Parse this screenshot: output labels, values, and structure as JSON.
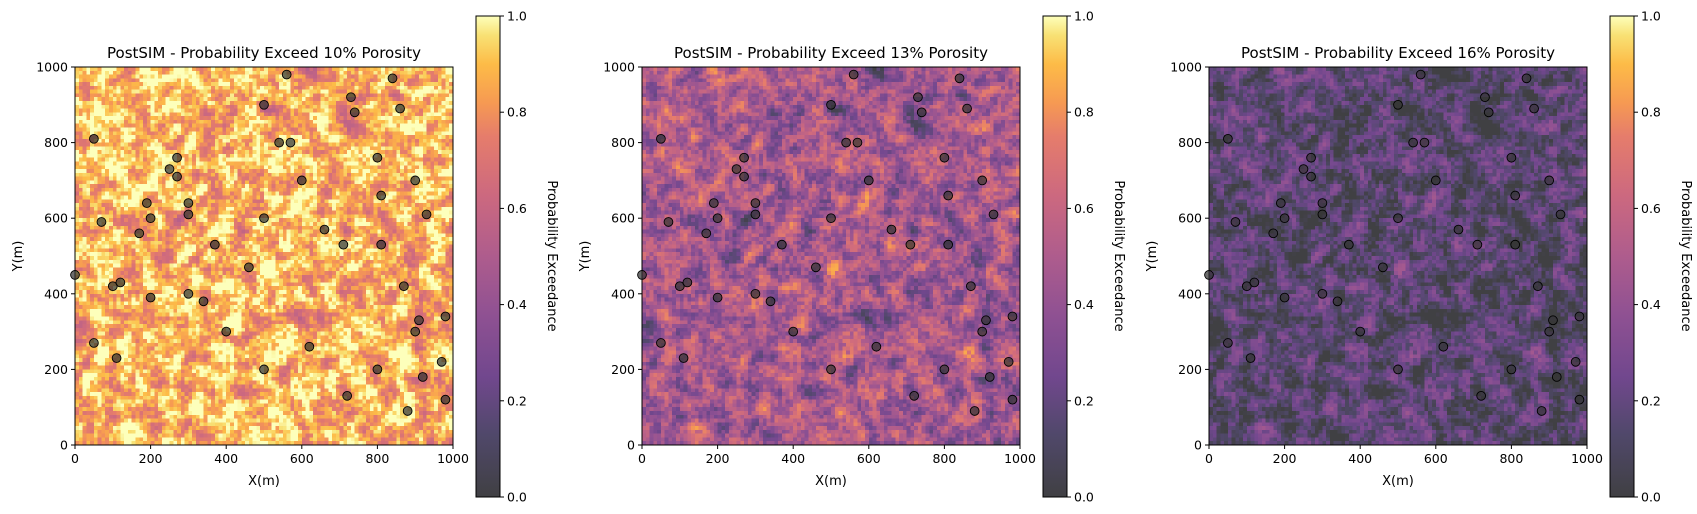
{
  "chart_data": [
    {
      "type": "heatmap",
      "title": "PostSIM - Probability Exceed 10% Porosity",
      "xlabel": "X(m)",
      "ylabel": "Y(m)",
      "xlim": [
        0,
        1000
      ],
      "ylim": [
        0,
        1000
      ],
      "xticks": [
        "0",
        "200",
        "400",
        "600",
        "800",
        "1000"
      ],
      "yticks": [
        "0",
        "200",
        "400",
        "600",
        "800",
        "1000"
      ],
      "colorbar": {
        "label": "Probability Exceedance",
        "ticks": [
          "0.0",
          "0.2",
          "0.4",
          "0.6",
          "0.8",
          "1.0"
        ],
        "range": [
          0,
          1
        ],
        "colormap": "inferno"
      },
      "grid_cells": 100,
      "mean_probability": 0.82
    },
    {
      "type": "heatmap",
      "title": "PostSIM - Probability Exceed 13% Porosity",
      "xlabel": "X(m)",
      "ylabel": "Y(m)",
      "xlim": [
        0,
        1000
      ],
      "ylim": [
        0,
        1000
      ],
      "xticks": [
        "0",
        "200",
        "400",
        "600",
        "800",
        "1000"
      ],
      "yticks": [
        "0",
        "200",
        "400",
        "600",
        "800",
        "1000"
      ],
      "colorbar": {
        "label": "Probability Exceedance",
        "ticks": [
          "0.0",
          "0.2",
          "0.4",
          "0.6",
          "0.8",
          "1.0"
        ],
        "range": [
          0,
          1
        ],
        "colormap": "inferno"
      },
      "grid_cells": 100,
      "mean_probability": 0.45
    },
    {
      "type": "heatmap",
      "title": "PostSIM - Probability Exceed 16% Porosity",
      "xlabel": "X(m)",
      "ylabel": "Y(m)",
      "xlim": [
        0,
        1000
      ],
      "ylim": [
        0,
        1000
      ],
      "xticks": [
        "0",
        "200",
        "400",
        "600",
        "800",
        "1000"
      ],
      "yticks": [
        "0",
        "200",
        "400",
        "600",
        "800",
        "1000"
      ],
      "colorbar": {
        "label": "Probability Exceedance",
        "ticks": [
          "0.0",
          "0.2",
          "0.4",
          "0.6",
          "0.8",
          "1.0"
        ],
        "range": [
          0,
          1
        ],
        "colormap": "inferno"
      },
      "grid_cells": 100,
      "mean_probability": 0.14
    }
  ],
  "wells": [
    {
      "x": 0,
      "y": 450
    },
    {
      "x": 50,
      "y": 810
    },
    {
      "x": 70,
      "y": 590
    },
    {
      "x": 50,
      "y": 270
    },
    {
      "x": 100,
      "y": 420
    },
    {
      "x": 120,
      "y": 430
    },
    {
      "x": 110,
      "y": 230
    },
    {
      "x": 170,
      "y": 560
    },
    {
      "x": 190,
      "y": 640
    },
    {
      "x": 200,
      "y": 600
    },
    {
      "x": 200,
      "y": 390
    },
    {
      "x": 250,
      "y": 730
    },
    {
      "x": 270,
      "y": 760
    },
    {
      "x": 270,
      "y": 710
    },
    {
      "x": 300,
      "y": 640
    },
    {
      "x": 300,
      "y": 610
    },
    {
      "x": 300,
      "y": 400
    },
    {
      "x": 340,
      "y": 380
    },
    {
      "x": 370,
      "y": 530
    },
    {
      "x": 400,
      "y": 300
    },
    {
      "x": 460,
      "y": 470
    },
    {
      "x": 500,
      "y": 900
    },
    {
      "x": 500,
      "y": 600
    },
    {
      "x": 500,
      "y": 200
    },
    {
      "x": 540,
      "y": 800
    },
    {
      "x": 560,
      "y": 980
    },
    {
      "x": 570,
      "y": 800
    },
    {
      "x": 600,
      "y": 700
    },
    {
      "x": 620,
      "y": 260
    },
    {
      "x": 660,
      "y": 570
    },
    {
      "x": 710,
      "y": 530
    },
    {
      "x": 720,
      "y": 130
    },
    {
      "x": 730,
      "y": 920
    },
    {
      "x": 740,
      "y": 880
    },
    {
      "x": 800,
      "y": 760
    },
    {
      "x": 800,
      "y": 200
    },
    {
      "x": 810,
      "y": 660
    },
    {
      "x": 810,
      "y": 530
    },
    {
      "x": 840,
      "y": 970
    },
    {
      "x": 860,
      "y": 890
    },
    {
      "x": 870,
      "y": 420
    },
    {
      "x": 880,
      "y": 90
    },
    {
      "x": 900,
      "y": 700
    },
    {
      "x": 900,
      "y": 300
    },
    {
      "x": 910,
      "y": 330
    },
    {
      "x": 920,
      "y": 180
    },
    {
      "x": 930,
      "y": 610
    },
    {
      "x": 970,
      "y": 220
    },
    {
      "x": 980,
      "y": 340
    },
    {
      "x": 980,
      "y": 120
    }
  ],
  "colors": {
    "well_fill": "#333333",
    "well_edge": "#000000"
  }
}
